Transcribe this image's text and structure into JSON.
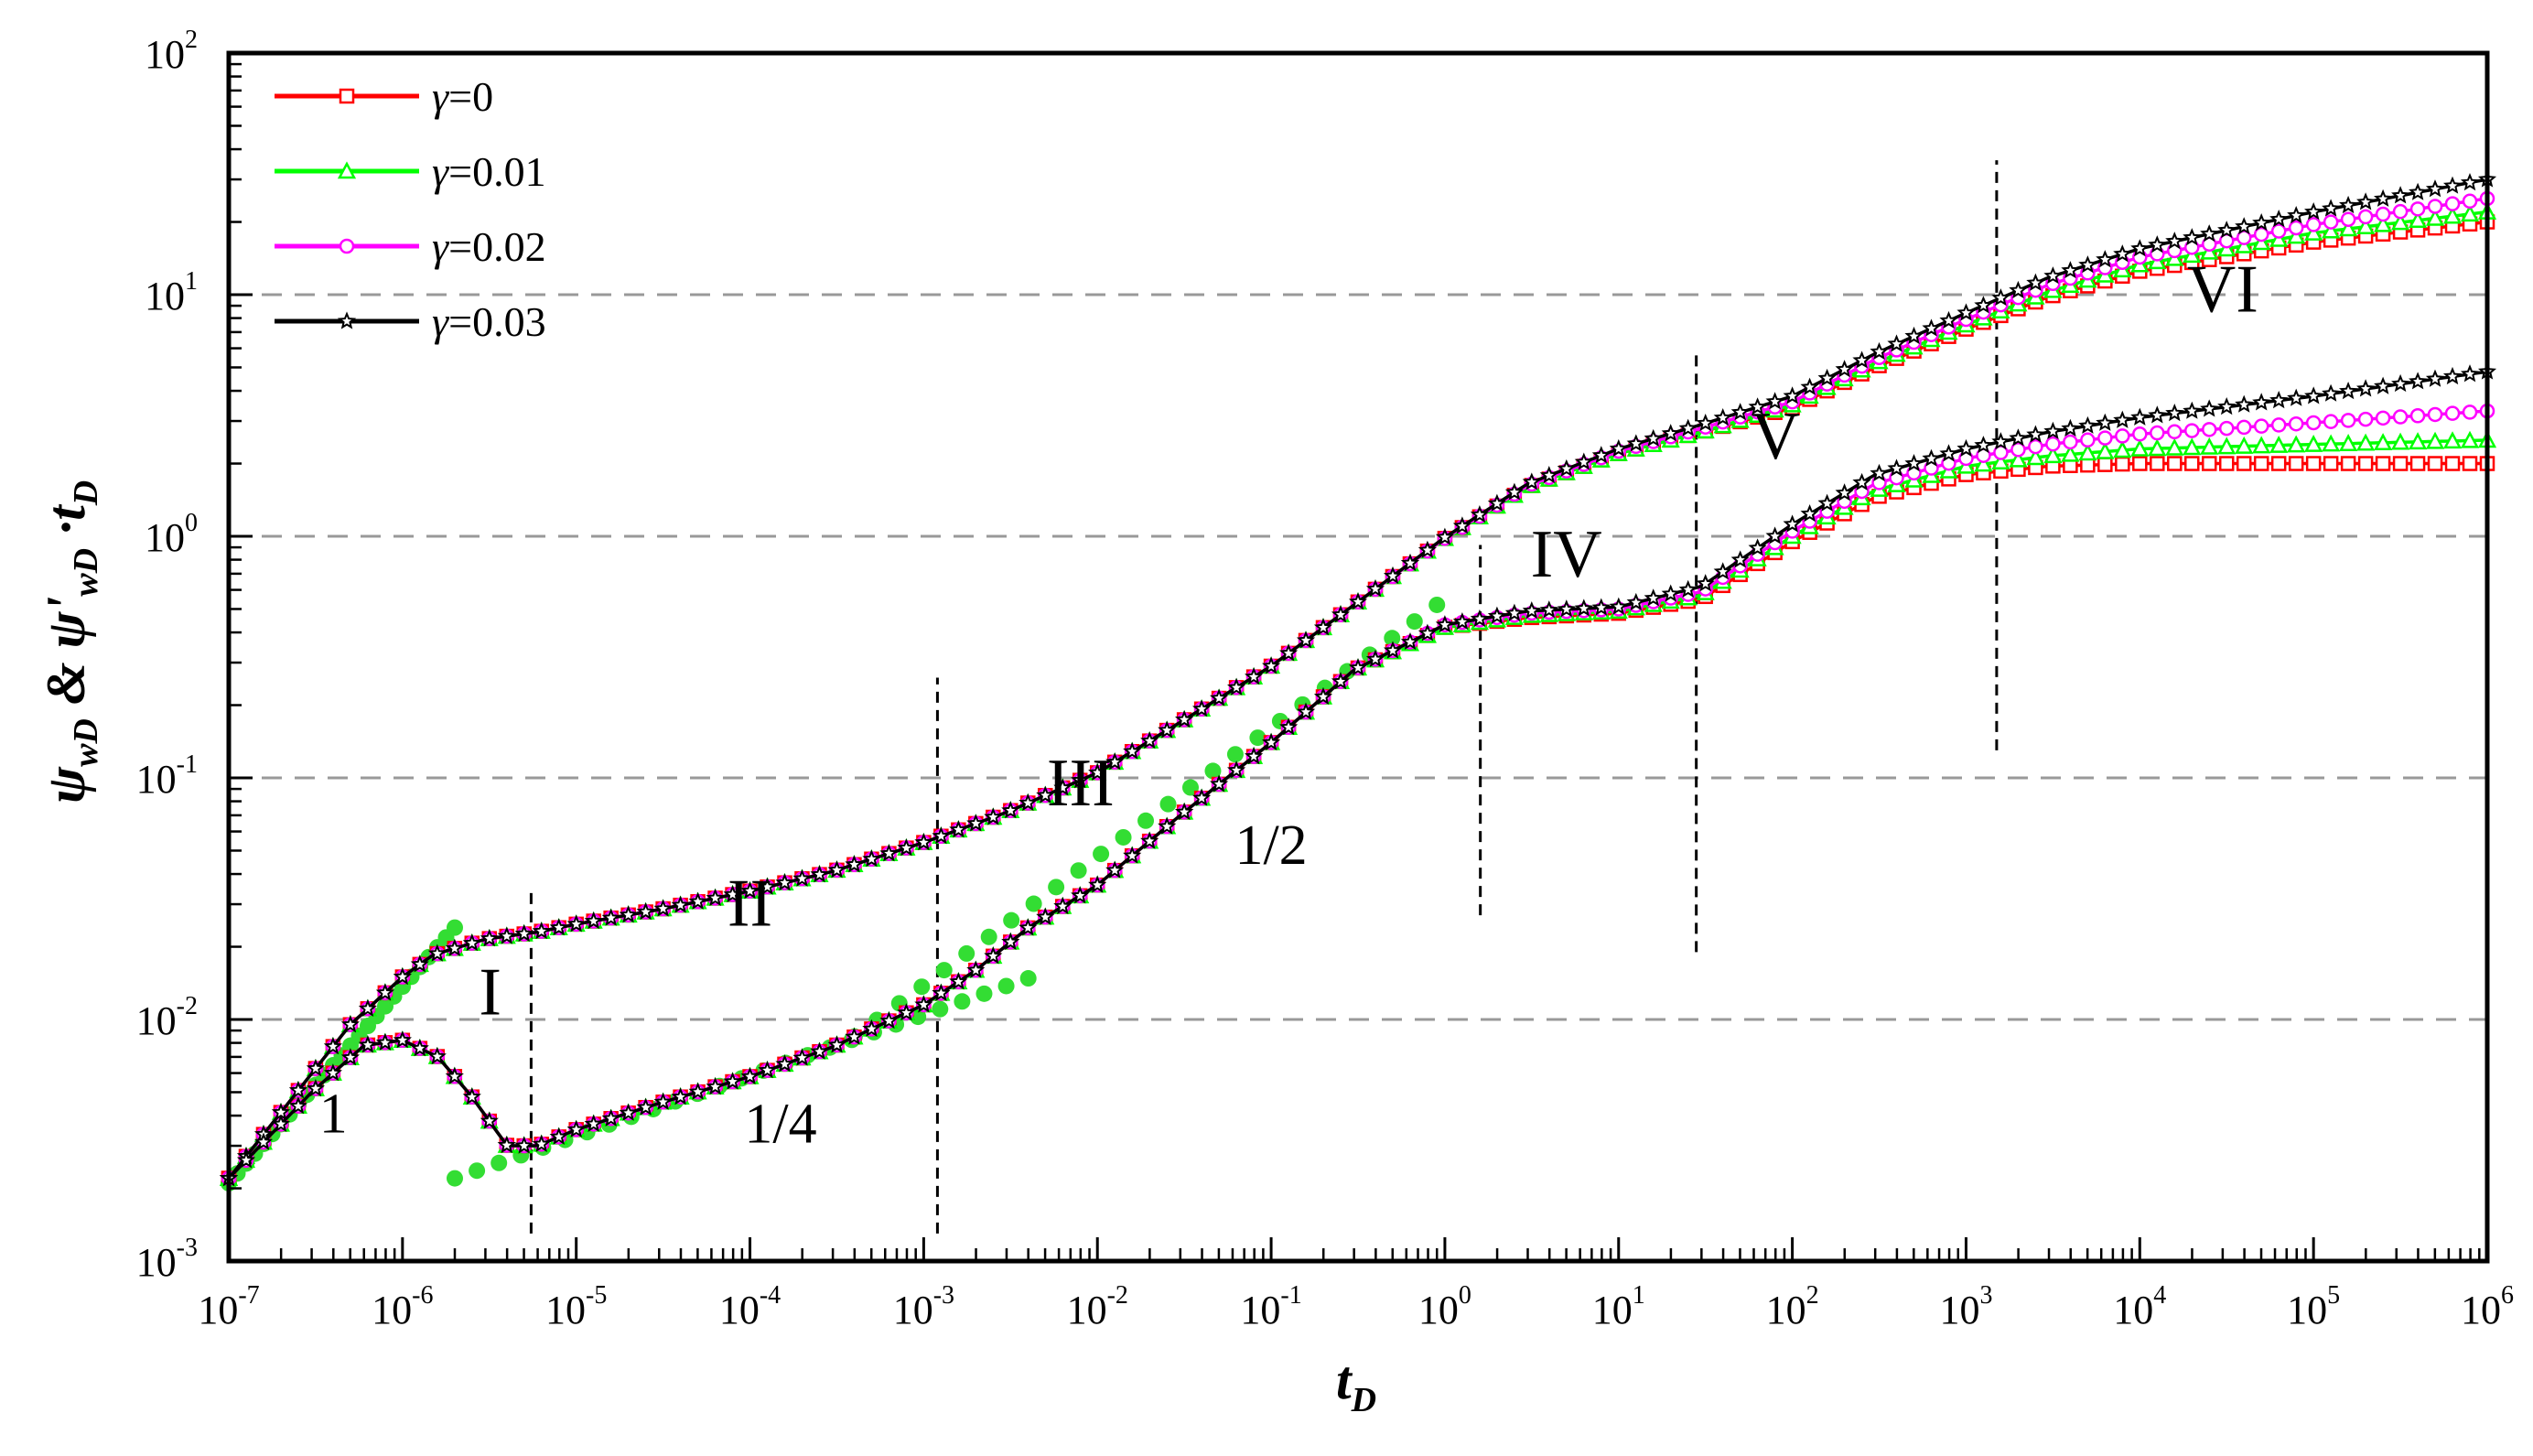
{
  "chart_data": {
    "type": "line",
    "title": "",
    "xlabel": {
      "main": "t",
      "sub": "D"
    },
    "ylabel": {
      "psi": "ψ",
      "sub1": "wD",
      "amp": " & ",
      "psi2": "ψ'",
      "sub2": "wD",
      "dot": " ·",
      "t": "t",
      "sub3": "D"
    },
    "x_scale": "log",
    "y_scale": "log",
    "xlim": [
      1e-07,
      1000000.0
    ],
    "ylim": [
      0.001,
      100
    ],
    "x_ticks": [
      {
        "base": "10",
        "exp": "-7"
      },
      {
        "base": "10",
        "exp": "-6"
      },
      {
        "base": "10",
        "exp": "-5"
      },
      {
        "base": "10",
        "exp": "-4"
      },
      {
        "base": "10",
        "exp": "-3"
      },
      {
        "base": "10",
        "exp": "-2"
      },
      {
        "base": "10",
        "exp": "-1"
      },
      {
        "base": "10",
        "exp": "0"
      },
      {
        "base": "10",
        "exp": "1"
      },
      {
        "base": "10",
        "exp": "2"
      },
      {
        "base": "10",
        "exp": "3"
      },
      {
        "base": "10",
        "exp": "4"
      },
      {
        "base": "10",
        "exp": "5"
      },
      {
        "base": "10",
        "exp": "6"
      }
    ],
    "y_ticks": [
      {
        "base": "10",
        "exp": "-3"
      },
      {
        "base": "10",
        "exp": "-2"
      },
      {
        "base": "10",
        "exp": "-1"
      },
      {
        "base": "10",
        "exp": "0"
      },
      {
        "base": "10",
        "exp": "1"
      },
      {
        "base": "10",
        "exp": "2"
      }
    ],
    "grid": "horizontal dashed at major y ticks",
    "legend_position": "top-left",
    "series": [
      {
        "name": "γ=0",
        "legend_label": "γ=0",
        "color": "#ff0000",
        "marker": "square",
        "pressure": [
          [
            1e-07,
            0.0022
          ],
          [
            5e-07,
            0.0095
          ],
          [
            1e-06,
            0.015
          ],
          [
            1.5e-06,
            0.0185
          ],
          [
            3e-06,
            0.0215
          ],
          [
            6e-06,
            0.023
          ],
          [
            1e-05,
            0.0248
          ],
          [
            3e-05,
            0.0285
          ],
          [
            0.0001,
            0.034
          ],
          [
            0.0003,
            0.041
          ],
          [
            0.001,
            0.054
          ],
          [
            0.003,
            0.072
          ],
          [
            0.01,
            0.105
          ],
          [
            0.03,
            0.17
          ],
          [
            0.1,
            0.29
          ],
          [
            0.3,
            0.52
          ],
          [
            1,
            0.98
          ],
          [
            3,
            1.6
          ],
          [
            10,
            2.2
          ],
          [
            30,
            2.7
          ],
          [
            100,
            3.4
          ],
          [
            300,
            5.0
          ],
          [
            1000,
            7.2
          ],
          [
            3000,
            9.8
          ],
          [
            10000,
            12.5
          ],
          [
            100000,
            16.5
          ],
          [
            1000000,
            20
          ]
        ],
        "derivative": [
          [
            1e-07,
            0.0022
          ],
          [
            3e-07,
            0.005
          ],
          [
            6e-07,
            0.0078
          ],
          [
            1e-06,
            0.0082
          ],
          [
            1.6e-06,
            0.007
          ],
          [
            2.5e-06,
            0.0048
          ],
          [
            4e-06,
            0.003
          ],
          [
            6e-06,
            0.003
          ],
          [
            1e-05,
            0.0035
          ],
          [
            3e-05,
            0.0045
          ],
          [
            0.0001,
            0.0058
          ],
          [
            0.0003,
            0.0077
          ],
          [
            0.001,
            0.0115
          ],
          [
            0.002,
            0.016
          ],
          [
            0.004,
            0.024
          ],
          [
            0.01,
            0.036
          ],
          [
            0.03,
            0.07
          ],
          [
            0.1,
            0.14
          ],
          [
            0.3,
            0.28
          ],
          [
            1,
            0.42
          ],
          [
            3,
            0.46
          ],
          [
            10,
            0.48
          ],
          [
            30,
            0.55
          ],
          [
            100,
            0.95
          ],
          [
            300,
            1.45
          ],
          [
            1000,
            1.8
          ],
          [
            3000,
            1.95
          ],
          [
            10000,
            2.0
          ],
          [
            100000,
            2.0
          ],
          [
            1000000,
            2.0
          ]
        ]
      },
      {
        "name": "γ=0.01",
        "legend_label": "γ=0.01",
        "color": "#00ff00",
        "marker": "triangle",
        "pressure": [
          [
            1e-07,
            0.0022
          ],
          [
            5e-07,
            0.0095
          ],
          [
            1e-06,
            0.015
          ],
          [
            1.5e-06,
            0.0185
          ],
          [
            3e-06,
            0.0215
          ],
          [
            6e-06,
            0.023
          ],
          [
            1e-05,
            0.0248
          ],
          [
            3e-05,
            0.0285
          ],
          [
            0.0001,
            0.034
          ],
          [
            0.0003,
            0.041
          ],
          [
            0.001,
            0.054
          ],
          [
            0.003,
            0.072
          ],
          [
            0.01,
            0.105
          ],
          [
            0.03,
            0.17
          ],
          [
            0.1,
            0.29
          ],
          [
            0.3,
            0.52
          ],
          [
            1,
            0.98
          ],
          [
            3,
            1.6
          ],
          [
            10,
            2.2
          ],
          [
            30,
            2.7
          ],
          [
            100,
            3.5
          ],
          [
            300,
            5.2
          ],
          [
            1000,
            7.5
          ],
          [
            3000,
            10.3
          ],
          [
            10000,
            13.3
          ],
          [
            100000,
            18
          ],
          [
            1000000,
            22
          ]
        ],
        "derivative": [
          [
            1e-07,
            0.0022
          ],
          [
            3e-07,
            0.005
          ],
          [
            6e-07,
            0.0078
          ],
          [
            1e-06,
            0.0082
          ],
          [
            1.6e-06,
            0.007
          ],
          [
            2.5e-06,
            0.0048
          ],
          [
            4e-06,
            0.003
          ],
          [
            6e-06,
            0.003
          ],
          [
            1e-05,
            0.0035
          ],
          [
            3e-05,
            0.0045
          ],
          [
            0.0001,
            0.0058
          ],
          [
            0.0003,
            0.0077
          ],
          [
            0.001,
            0.0115
          ],
          [
            0.002,
            0.016
          ],
          [
            0.004,
            0.024
          ],
          [
            0.01,
            0.036
          ],
          [
            0.03,
            0.07
          ],
          [
            0.1,
            0.14
          ],
          [
            0.3,
            0.28
          ],
          [
            1,
            0.42
          ],
          [
            3,
            0.47
          ],
          [
            10,
            0.49
          ],
          [
            30,
            0.57
          ],
          [
            100,
            1.0
          ],
          [
            300,
            1.55
          ],
          [
            1000,
            1.95
          ],
          [
            3000,
            2.15
          ],
          [
            10000,
            2.3
          ],
          [
            100000,
            2.4
          ],
          [
            1000000,
            2.5
          ]
        ]
      },
      {
        "name": "γ=0.02",
        "legend_label": "γ=0.02",
        "color": "#ff00ff",
        "marker": "circle",
        "pressure": [
          [
            1e-07,
            0.0022
          ],
          [
            5e-07,
            0.0095
          ],
          [
            1e-06,
            0.015
          ],
          [
            1.5e-06,
            0.0185
          ],
          [
            3e-06,
            0.0215
          ],
          [
            6e-06,
            0.023
          ],
          [
            1e-05,
            0.0248
          ],
          [
            3e-05,
            0.0285
          ],
          [
            0.0001,
            0.034
          ],
          [
            0.0003,
            0.041
          ],
          [
            0.001,
            0.054
          ],
          [
            0.003,
            0.072
          ],
          [
            0.01,
            0.105
          ],
          [
            0.03,
            0.17
          ],
          [
            0.1,
            0.29
          ],
          [
            0.3,
            0.52
          ],
          [
            1,
            0.98
          ],
          [
            3,
            1.62
          ],
          [
            10,
            2.25
          ],
          [
            30,
            2.8
          ],
          [
            100,
            3.6
          ],
          [
            300,
            5.4
          ],
          [
            1000,
            7.9
          ],
          [
            3000,
            11
          ],
          [
            10000,
            14.3
          ],
          [
            100000,
            19.5
          ],
          [
            1000000,
            25
          ]
        ],
        "derivative": [
          [
            1e-07,
            0.0022
          ],
          [
            3e-07,
            0.005
          ],
          [
            6e-07,
            0.0078
          ],
          [
            1e-06,
            0.0082
          ],
          [
            1.6e-06,
            0.007
          ],
          [
            2.5e-06,
            0.0048
          ],
          [
            4e-06,
            0.003
          ],
          [
            6e-06,
            0.003
          ],
          [
            1e-05,
            0.0035
          ],
          [
            3e-05,
            0.0045
          ],
          [
            0.0001,
            0.0058
          ],
          [
            0.0003,
            0.0077
          ],
          [
            0.001,
            0.0115
          ],
          [
            0.002,
            0.016
          ],
          [
            0.004,
            0.024
          ],
          [
            0.01,
            0.036
          ],
          [
            0.03,
            0.07
          ],
          [
            0.1,
            0.14
          ],
          [
            0.3,
            0.28
          ],
          [
            1,
            0.43
          ],
          [
            3,
            0.48
          ],
          [
            10,
            0.5
          ],
          [
            30,
            0.59
          ],
          [
            100,
            1.05
          ],
          [
            300,
            1.65
          ],
          [
            1000,
            2.1
          ],
          [
            3000,
            2.4
          ],
          [
            10000,
            2.65
          ],
          [
            100000,
            2.95
          ],
          [
            1000000,
            3.3
          ]
        ]
      },
      {
        "name": "γ=0.03",
        "legend_label": "γ=0.03",
        "color": "#000000",
        "marker": "star",
        "pressure": [
          [
            1e-07,
            0.0022
          ],
          [
            5e-07,
            0.0095
          ],
          [
            1e-06,
            0.015
          ],
          [
            1.5e-06,
            0.0185
          ],
          [
            3e-06,
            0.0215
          ],
          [
            6e-06,
            0.023
          ],
          [
            1e-05,
            0.0248
          ],
          [
            3e-05,
            0.0285
          ],
          [
            0.0001,
            0.034
          ],
          [
            0.0003,
            0.041
          ],
          [
            0.001,
            0.054
          ],
          [
            0.003,
            0.072
          ],
          [
            0.01,
            0.105
          ],
          [
            0.03,
            0.17
          ],
          [
            0.1,
            0.29
          ],
          [
            0.3,
            0.52
          ],
          [
            1,
            0.99
          ],
          [
            3,
            1.65
          ],
          [
            10,
            2.3
          ],
          [
            30,
            2.9
          ],
          [
            100,
            3.8
          ],
          [
            300,
            5.7
          ],
          [
            1000,
            8.4
          ],
          [
            3000,
            11.8
          ],
          [
            10000,
            15.5
          ],
          [
            100000,
            22
          ],
          [
            1000000,
            30
          ]
        ],
        "derivative": [
          [
            1e-07,
            0.0022
          ],
          [
            3e-07,
            0.005
          ],
          [
            6e-07,
            0.0078
          ],
          [
            1e-06,
            0.0082
          ],
          [
            1.6e-06,
            0.007
          ],
          [
            2.5e-06,
            0.0048
          ],
          [
            4e-06,
            0.003
          ],
          [
            6e-06,
            0.003
          ],
          [
            1e-05,
            0.0035
          ],
          [
            3e-05,
            0.0045
          ],
          [
            0.0001,
            0.0058
          ],
          [
            0.0003,
            0.0077
          ],
          [
            0.001,
            0.0115
          ],
          [
            0.002,
            0.016
          ],
          [
            0.004,
            0.024
          ],
          [
            0.01,
            0.036
          ],
          [
            0.03,
            0.07
          ],
          [
            0.1,
            0.14
          ],
          [
            0.3,
            0.28
          ],
          [
            1,
            0.43
          ],
          [
            3,
            0.49
          ],
          [
            10,
            0.51
          ],
          [
            30,
            0.62
          ],
          [
            100,
            1.12
          ],
          [
            300,
            1.8
          ],
          [
            1000,
            2.3
          ],
          [
            3000,
            2.7
          ],
          [
            10000,
            3.1
          ],
          [
            100000,
            3.8
          ],
          [
            1000000,
            4.8
          ]
        ]
      }
    ],
    "reference_lines": [
      {
        "slope_label": "1",
        "color": "#33dd33",
        "points": [
          [
            1e-07,
            0.0021
          ],
          [
            2e-06,
            0.024
          ]
        ]
      },
      {
        "slope_label": "1/4",
        "color": "#33dd33",
        "points": [
          [
            2e-06,
            0.0022
          ],
          [
            0.004,
            0.0148
          ]
        ]
      },
      {
        "slope_label": "1/2",
        "color": "#33dd33",
        "points": [
          [
            0.0004,
            0.0085
          ],
          [
            0.9,
            0.52
          ]
        ]
      }
    ],
    "vertical_dividers": [
      {
        "x": 5.5e-06,
        "y_range": [
          0.0013,
          0.034
        ]
      },
      {
        "x": 0.0012,
        "y_range": [
          0.0013,
          0.26
        ]
      },
      {
        "x": 1.6,
        "y_range": [
          0.027,
          0.92
        ]
      },
      {
        "x": 28,
        "y_range": [
          0.019,
          5.8
        ]
      },
      {
        "x": 1500,
        "y_range": [
          0.13,
          36
        ]
      }
    ],
    "region_labels": [
      {
        "text": "I",
        "x": 3.2e-06,
        "y": 0.0105
      },
      {
        "text": "II",
        "x": 0.0001,
        "y": 0.0245
      },
      {
        "text": "III",
        "x": 0.008,
        "y": 0.077
      },
      {
        "text": "IV",
        "x": 5,
        "y": 0.68
      },
      {
        "text": "V",
        "x": 80,
        "y": 2.1
      },
      {
        "text": "VI",
        "x": 30000,
        "y": 8.5
      }
    ],
    "slope_labels": [
      {
        "text": "1",
        "x": 4e-07,
        "y": 0.0034
      },
      {
        "text": "1/4",
        "x": 0.00015,
        "y": 0.0031
      },
      {
        "text": "1/2",
        "x": 0.1,
        "y": 0.044
      }
    ]
  }
}
